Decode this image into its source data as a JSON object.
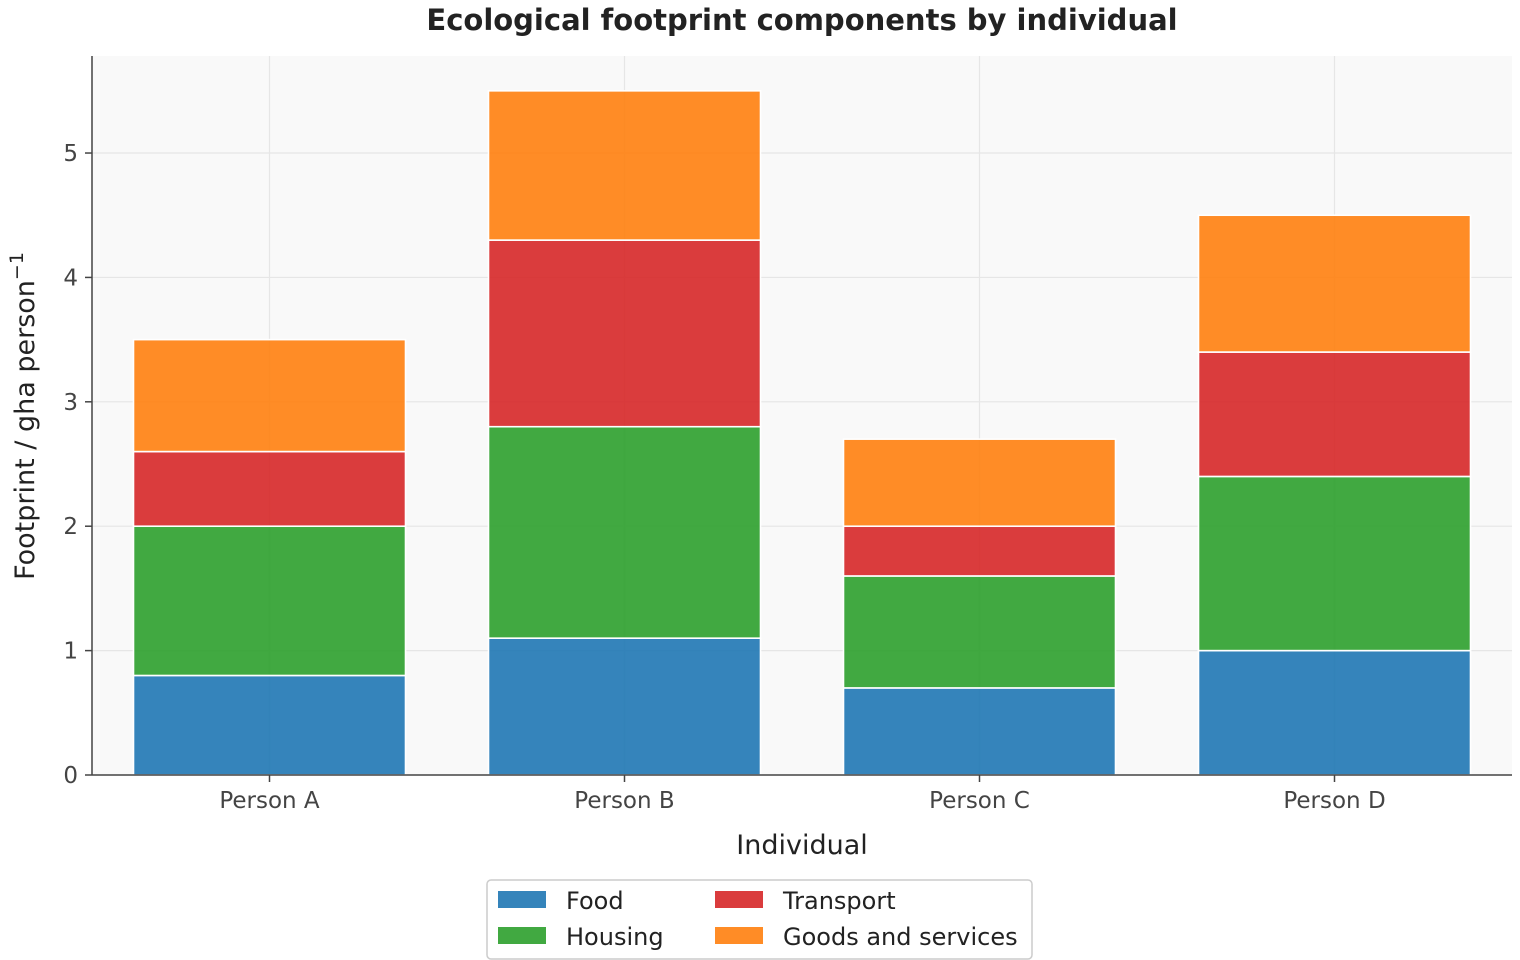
{
  "chart_data": {
    "type": "bar",
    "stacked": true,
    "title": "Ecological footprint components by individual",
    "xlabel": "Individual",
    "ylabel_main": "Footprint / gha person",
    "ylabel_sup": "−1",
    "categories": [
      "Person A",
      "Person B",
      "Person C",
      "Person D"
    ],
    "series": [
      {
        "name": "Food",
        "color": "#1f77b4",
        "values": [
          0.8,
          1.1,
          0.7,
          1.0
        ]
      },
      {
        "name": "Housing",
        "color": "#2ca02c",
        "values": [
          1.2,
          1.7,
          0.9,
          1.4
        ]
      },
      {
        "name": "Transport",
        "color": "#d62728",
        "values": [
          0.6,
          1.5,
          0.4,
          1.0
        ]
      },
      {
        "name": "Goods and services",
        "color": "#ff7f0e",
        "values": [
          0.9,
          1.2,
          0.7,
          1.1
        ]
      }
    ],
    "ylim": [
      0,
      5.78
    ],
    "yticks": [
      "0",
      "1",
      "2",
      "3",
      "4",
      "5"
    ],
    "grid": true,
    "legend_position": "bottom-center"
  }
}
